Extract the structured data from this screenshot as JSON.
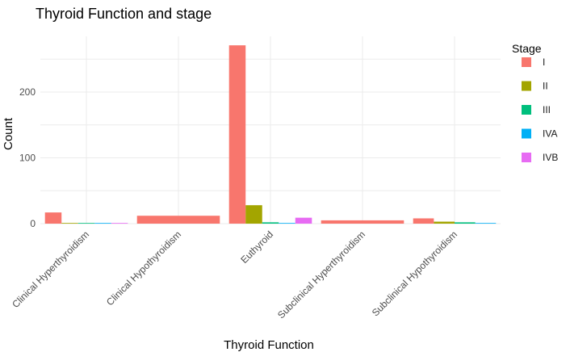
{
  "chart_data": {
    "type": "bar",
    "title": "Thyroid Function and stage",
    "xlabel": "Thyroid Function",
    "ylabel": "Count",
    "ylim": [
      0,
      290
    ],
    "yticks": [
      0,
      100,
      200
    ],
    "grid": true,
    "legend_title": "Stage",
    "legend_position": "right",
    "categories": [
      "Clinical Hyperthyroidism",
      "Clinical Hypothyroidism",
      "Euthyroid",
      "Subclinical Hyperthyroidism",
      "Subclinical Hypothyroidism"
    ],
    "series": [
      {
        "name": "I",
        "color": "#F8766D",
        "values": [
          17,
          12,
          271,
          5,
          8
        ]
      },
      {
        "name": "II",
        "color": "#A3A500",
        "values": [
          1,
          0,
          28,
          0,
          3
        ]
      },
      {
        "name": "III",
        "color": "#00BF7D",
        "values": [
          1,
          0,
          2,
          0,
          2
        ]
      },
      {
        "name": "IVA",
        "color": "#00B0F6",
        "values": [
          1,
          0,
          1,
          0,
          1
        ]
      },
      {
        "name": "IVB",
        "color": "#E76BF3",
        "values": [
          1,
          0,
          9,
          0,
          0
        ]
      }
    ],
    "bar_layout": "dodge"
  }
}
